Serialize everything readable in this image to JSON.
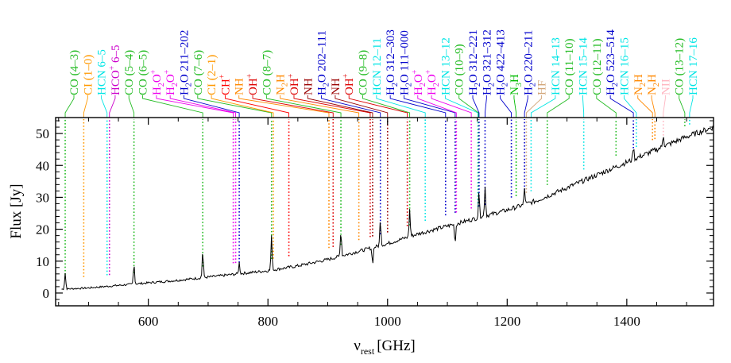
{
  "chart_data": {
    "type": "line",
    "xlabel": "ν",
    "xlabel_sub": "rest",
    "xlabel_unit": "[GHz]",
    "ylabel": "Flux [Jy]",
    "xlim": [
      445,
      1545
    ],
    "ylim": [
      -4,
      55
    ],
    "x_ticks": [
      600,
      800,
      1000,
      1200,
      1400
    ],
    "y_ticks": [
      0,
      10,
      20,
      30,
      40,
      50
    ],
    "grid": false,
    "colors": {
      "CO": "#22bb22",
      "CI": "#ff9900",
      "HCN": "#00e5e5",
      "HCO+": "#cc00cc",
      "H2O": "#0000cc",
      "H2O+": "#ee00ee",
      "CH+": "#ff0000",
      "NH2": "#ff8800",
      "OH+": "#dd0000",
      "NH": "#990000",
      "NH3": "#00bb00",
      "HF": "#d2a679",
      "NII": "#ffb6c1",
      "spectrum": "#000000"
    },
    "lines": [
      {
        "freq": 461,
        "label": "CO (4–3)",
        "species": "CO",
        "sup": "",
        "sub": ""
      },
      {
        "freq": 492,
        "label": "CI (1–0)",
        "species": "CI",
        "sup": "",
        "sub": ""
      },
      {
        "freq": 531,
        "label": "HCN 6–5",
        "species": "HCN",
        "sup": "",
        "sub": ""
      },
      {
        "freq": 535,
        "label": "HCO 6–5",
        "species": "HCO+",
        "sup": "+",
        "sub": ""
      },
      {
        "freq": 576,
        "label": "CO (5–4)",
        "species": "CO",
        "sup": "",
        "sub": ""
      },
      {
        "freq": 691,
        "label": "CO (6–5)",
        "species": "CO",
        "sup": "",
        "sub": ""
      },
      {
        "freq": 742,
        "label": "HO",
        "species": "H2O+",
        "sup": "+",
        "sub": "2"
      },
      {
        "freq": 746,
        "label": "HO",
        "species": "H2O+",
        "sup": "+",
        "sub": "2"
      },
      {
        "freq": 752,
        "label": "HO 211–202",
        "species": "H2O",
        "sup": "",
        "sub": "2"
      },
      {
        "freq": 806,
        "label": "CO (7–6)",
        "species": "CO",
        "sup": "",
        "sub": ""
      },
      {
        "freq": 809,
        "label": "CI (2–1)",
        "species": "CI",
        "sup": "",
        "sub": ""
      },
      {
        "freq": 835,
        "label": "CH",
        "species": "CH+",
        "sup": "+",
        "sub": ""
      },
      {
        "freq": 902,
        "label": "NH",
        "species": "NH2",
        "sup": "",
        "sub": ""
      },
      {
        "freq": 909,
        "label": "OH",
        "species": "OH+",
        "sup": "+",
        "sub": ""
      },
      {
        "freq": 922,
        "label": "CO (8–7)",
        "species": "CO",
        "sup": "",
        "sub": ""
      },
      {
        "freq": 952,
        "label": "NH",
        "species": "NH2",
        "sup": "",
        "sub": "2"
      },
      {
        "freq": 971,
        "label": "OH",
        "species": "OH+",
        "sup": "+",
        "sub": ""
      },
      {
        "freq": 975,
        "label": "NH",
        "species": "NH",
        "sup": "",
        "sub": ""
      },
      {
        "freq": 988,
        "label": "HO 202–111",
        "species": "H2O",
        "sup": "",
        "sub": "2"
      },
      {
        "freq": 1000,
        "label": "NH",
        "species": "NH",
        "sup": "",
        "sub": ""
      },
      {
        "freq": 1033,
        "label": "OH",
        "species": "OH+",
        "sup": "+",
        "sub": ""
      },
      {
        "freq": 1037,
        "label": "CO (9–8)",
        "species": "CO",
        "sup": "",
        "sub": ""
      },
      {
        "freq": 1063,
        "label": "HCN 12–11",
        "species": "HCN",
        "sup": "",
        "sub": ""
      },
      {
        "freq": 1097,
        "label": "HO 312–303",
        "species": "H2O",
        "sup": "",
        "sub": "2"
      },
      {
        "freq": 1113,
        "label": "HO 111–000",
        "species": "H2O",
        "sup": "",
        "sub": "2"
      },
      {
        "freq": 1115,
        "label": "HO",
        "species": "H2O+",
        "sup": "+",
        "sub": "2"
      },
      {
        "freq": 1140,
        "label": "HO",
        "species": "H2O+",
        "sup": "+",
        "sub": "2"
      },
      {
        "freq": 1151,
        "label": "HCN 13–12",
        "species": "HCN",
        "sup": "",
        "sub": ""
      },
      {
        "freq": 1152,
        "label": "CO (10–9)",
        "species": "CO",
        "sup": "",
        "sub": ""
      },
      {
        "freq": 1153,
        "label": "HO 312–221",
        "species": "H2O",
        "sup": "",
        "sub": "2"
      },
      {
        "freq": 1163,
        "label": "HO 321–312",
        "species": "H2O",
        "sup": "",
        "sub": "2"
      },
      {
        "freq": 1207,
        "label": "HO 422–413",
        "species": "H2O",
        "sup": "",
        "sub": "2"
      },
      {
        "freq": 1215,
        "label": "NH",
        "species": "NH3",
        "sup": "",
        "sub": "3"
      },
      {
        "freq": 1229,
        "label": "HO 220–211",
        "species": "H2O",
        "sup": "",
        "sub": "2"
      },
      {
        "freq": 1232,
        "label": "HF",
        "species": "HF",
        "sup": "",
        "sub": ""
      },
      {
        "freq": 1240,
        "label": "HCN 14–13",
        "species": "HCN",
        "sup": "",
        "sub": ""
      },
      {
        "freq": 1267,
        "label": "CO (11–10)",
        "species": "CO",
        "sup": "",
        "sub": ""
      },
      {
        "freq": 1328,
        "label": "HCN 15–14",
        "species": "HCN",
        "sup": "",
        "sub": ""
      },
      {
        "freq": 1382,
        "label": "CO (12–11)",
        "species": "CO",
        "sup": "",
        "sub": ""
      },
      {
        "freq": 1411,
        "label": "HO 523–514",
        "species": "H2O",
        "sup": "",
        "sub": "2"
      },
      {
        "freq": 1416,
        "label": "HCN 16–15",
        "species": "HCN",
        "sup": "",
        "sub": ""
      },
      {
        "freq": 1443,
        "label": "NH",
        "species": "NH2",
        "sup": "",
        "sub": "2"
      },
      {
        "freq": 1447,
        "label": "NH",
        "species": "NH2",
        "sup": "",
        "sub": "2"
      },
      {
        "freq": 1461,
        "label": "NII",
        "species": "NII",
        "sup": "",
        "sub": ""
      },
      {
        "freq": 1497,
        "label": "CO (13–12)",
        "species": "CO",
        "sup": "",
        "sub": ""
      },
      {
        "freq": 1505,
        "label": "HCN 17–16",
        "species": "HCN",
        "sup": "",
        "sub": ""
      }
    ],
    "continuum": {
      "x": [
        455,
        500,
        550,
        600,
        650,
        700,
        750,
        800,
        850,
        900,
        950,
        1000,
        1050,
        1100,
        1150,
        1200,
        1250,
        1300,
        1350,
        1400,
        1450,
        1500,
        1545
      ],
      "y": [
        1.2,
        1.6,
        2.4,
        3.2,
        4.0,
        5.0,
        6.0,
        7.0,
        8.5,
        10.5,
        13.0,
        15.5,
        18.5,
        21.0,
        23.5,
        26.0,
        29.0,
        33.0,
        37.0,
        41.0,
        45.0,
        49.0,
        52.0
      ]
    },
    "features": [
      {
        "x": 461,
        "y": 5.0
      },
      {
        "x": 576,
        "y": 6.5
      },
      {
        "x": 691,
        "y": 8.5
      },
      {
        "x": 752,
        "y": 3.5
      },
      {
        "x": 806,
        "y": 10.5
      },
      {
        "x": 922,
        "y": 8.0
      },
      {
        "x": 975,
        "y": -5.0
      },
      {
        "x": 988,
        "y": 8.0
      },
      {
        "x": 1037,
        "y": 8.5
      },
      {
        "x": 1113,
        "y": -6.0
      },
      {
        "x": 1153,
        "y": 8.0
      },
      {
        "x": 1163,
        "y": 9.5
      },
      {
        "x": 1229,
        "y": 5.0
      },
      {
        "x": 1411,
        "y": 4.0
      },
      {
        "x": 1461,
        "y": 4.0
      }
    ]
  }
}
